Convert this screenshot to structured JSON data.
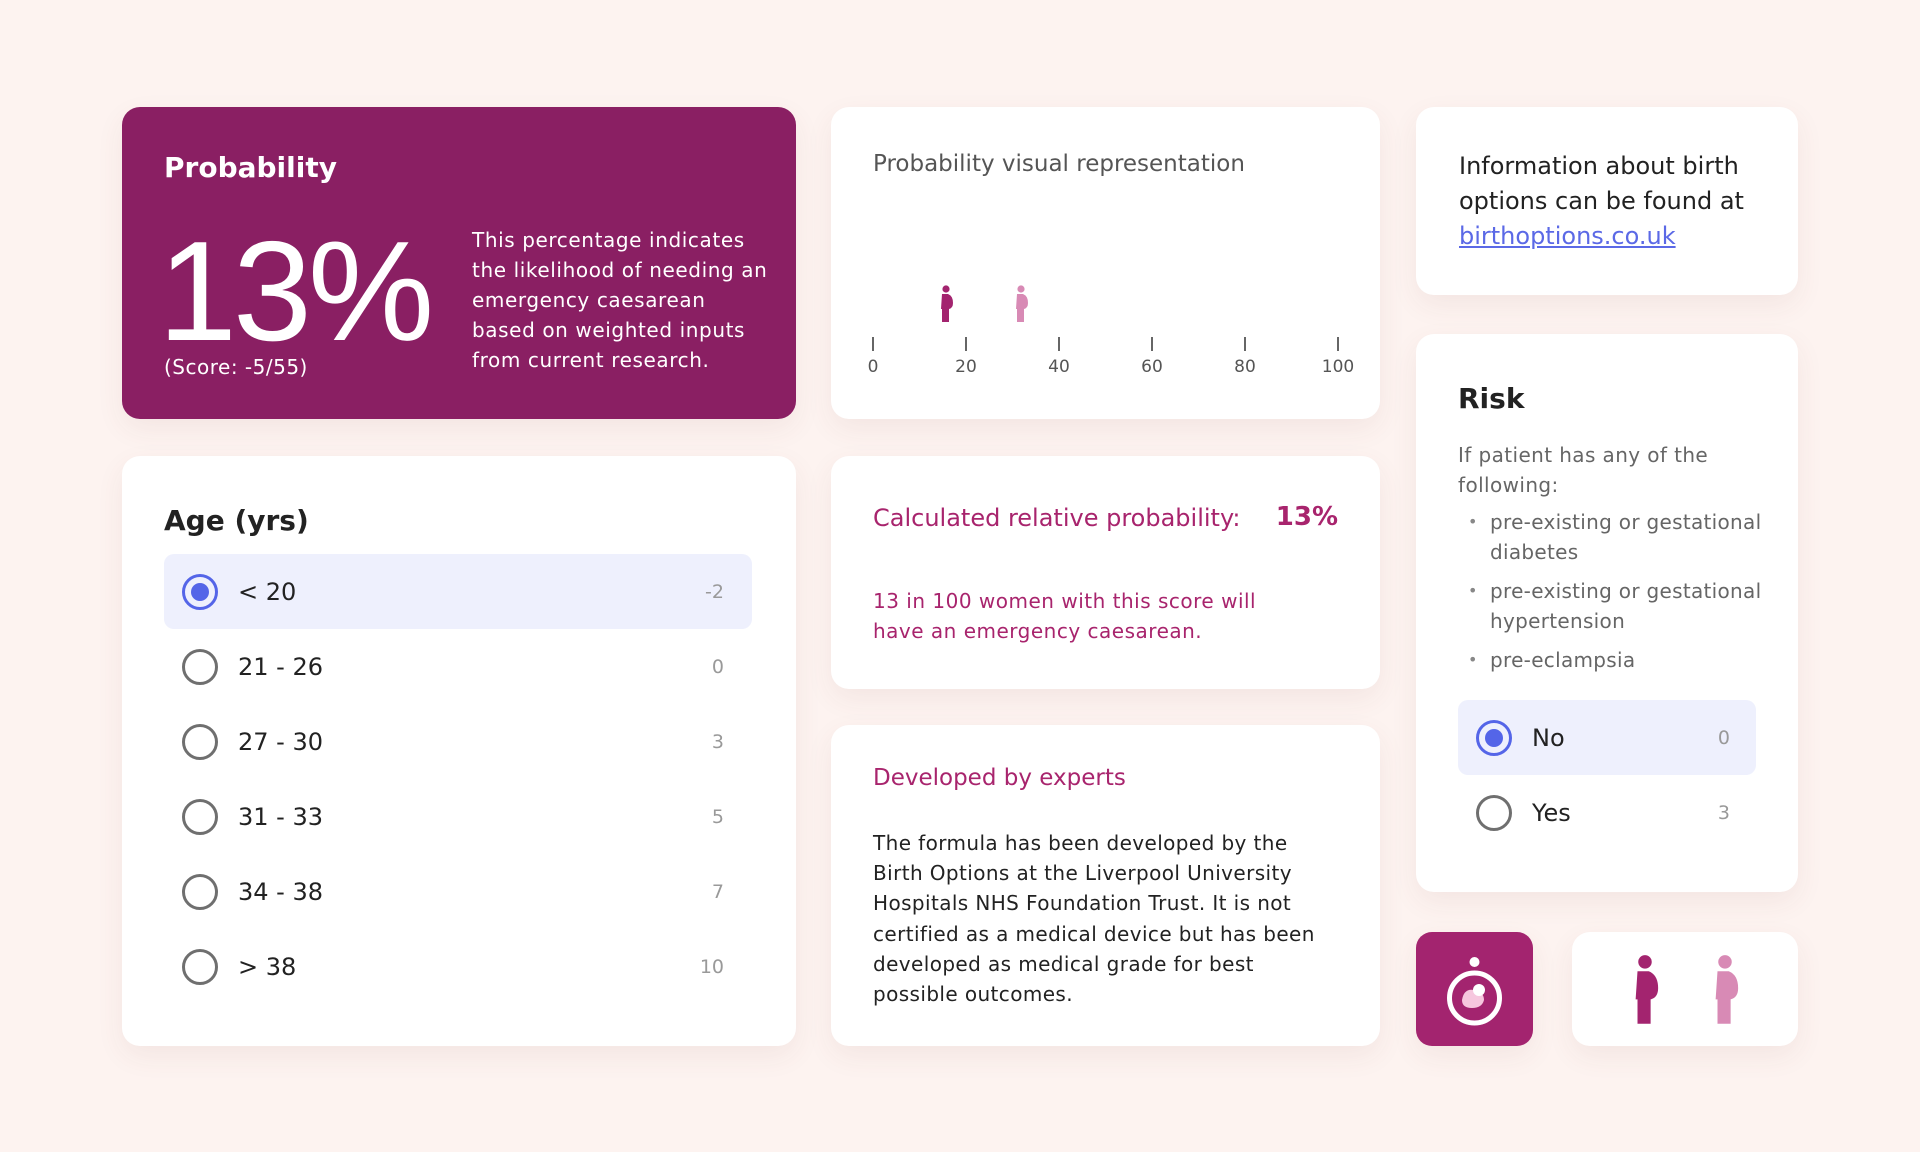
{
  "probability": {
    "title": "Probability",
    "value": "13%",
    "score": "(Score: -5/55)",
    "description": "This percentage indicates the likelihood of needing an emergency caesarean based on weighted inputs from current research."
  },
  "visual": {
    "title": "Probability visual representation",
    "ticks": [
      "0",
      "20",
      "40",
      "60",
      "80",
      "100"
    ],
    "markers": [
      {
        "value": 15,
        "color": "#a3246f",
        "icon": "pregnant-woman-icon"
      },
      {
        "value": 31,
        "color": "#d88ab5",
        "icon": "pregnant-woman-icon"
      }
    ]
  },
  "info": {
    "text": "Information about birth options can be found at",
    "link": "birthoptions.co.uk"
  },
  "age": {
    "title": "Age (yrs)",
    "options": [
      {
        "label": "< 20",
        "score": "-2",
        "selected": true
      },
      {
        "label": "21 - 26",
        "score": "0",
        "selected": false
      },
      {
        "label": "27 - 30",
        "score": "3",
        "selected": false
      },
      {
        "label": "31 - 33",
        "score": "5",
        "selected": false
      },
      {
        "label": "34 - 38",
        "score": "7",
        "selected": false
      },
      {
        "label": "> 38",
        "score": "10",
        "selected": false
      }
    ]
  },
  "calculated": {
    "label": "Calculated relative probability:",
    "value": "13%",
    "note": "13 in 100 women with this score will have an emergency caesarean."
  },
  "developed": {
    "title": "Developed by experts",
    "text": "The formula has been developed by the Birth Options at the Liverpool University Hospitals NHS Foundation Trust. It is not certified as a medical device but has been developed as medical grade for best possible outcomes."
  },
  "risk": {
    "title": "Risk",
    "intro": "If patient has any of the following:",
    "items": [
      "pre-existing or gestational diabetes",
      "pre-existing or gestational hypertension",
      "pre-eclampsia"
    ],
    "options": [
      {
        "label": "No",
        "score": "0",
        "selected": true
      },
      {
        "label": "Yes",
        "score": "3",
        "selected": false
      }
    ]
  },
  "colors": {
    "brand": "#8a1f63",
    "accent": "#a3246f",
    "light_accent": "#d88ab5",
    "radio": "#5465e8",
    "link": "#5b69e6",
    "background": "#fdf3f0"
  },
  "icons": {
    "logo": "baby-in-womb-icon",
    "figure_dark": "pregnant-woman-icon",
    "figure_light": "pregnant-woman-icon"
  }
}
